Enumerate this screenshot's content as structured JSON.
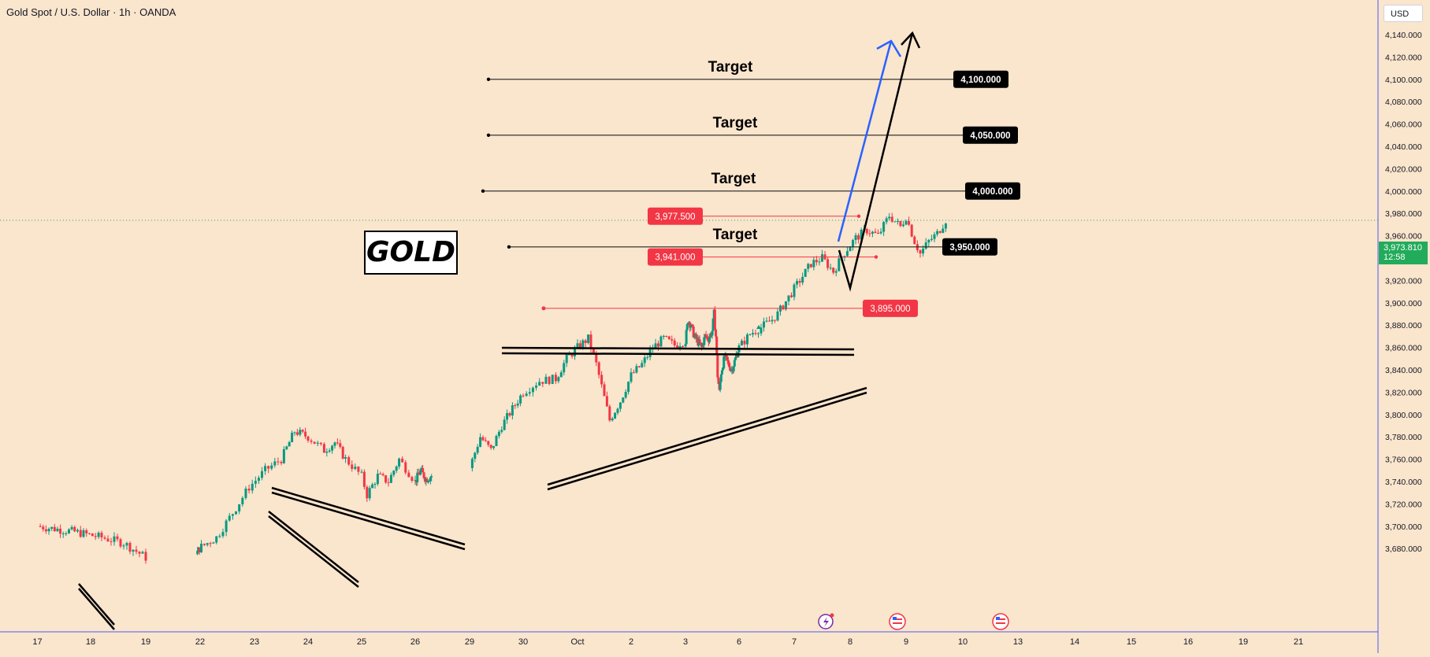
{
  "header": {
    "title": "Gold Spot / U.S. Dollar · 1h · OANDA",
    "currency": "USD"
  },
  "chart_data": {
    "type": "candlestick",
    "instrument": "Gold Spot / U.S. Dollar",
    "timeframe": "1h",
    "source": "OANDA",
    "currency": "USD",
    "ylim": [
      3672,
      4152
    ],
    "y_ticks": [
      "4,140.000",
      "4,120.000",
      "4,100.000",
      "4,080.000",
      "4,060.000",
      "4,040.000",
      "4,020.000",
      "4,000.000",
      "3,980.000",
      "3,960.000",
      "3,940.000",
      "3,920.000",
      "3,900.000",
      "3,880.000",
      "3,860.000",
      "3,840.000",
      "3,820.000",
      "3,800.000",
      "3,780.000",
      "3,760.000",
      "3,740.000",
      "3,720.000",
      "3,700.000",
      "3,680.000"
    ],
    "x_ticks": [
      "17",
      "18",
      "19",
      "22",
      "23",
      "24",
      "25",
      "26",
      "29",
      "30",
      "Oct",
      "2",
      "3",
      "6",
      "7",
      "8",
      "9",
      "10",
      "13",
      "14",
      "15",
      "16",
      "19",
      "21"
    ],
    "current_price": {
      "label": "3,973.810",
      "countdown": "12:58",
      "value": 3973.81
    },
    "price_path": [
      [
        17.0,
        3700
      ],
      [
        17.7,
        3695
      ],
      [
        18.2,
        3690
      ],
      [
        18.6,
        3685
      ],
      [
        19.0,
        3672
      ],
      [
        21.8,
        3675
      ],
      [
        22.3,
        3690
      ],
      [
        22.6,
        3712
      ],
      [
        22.9,
        3735
      ],
      [
        23.2,
        3750
      ],
      [
        23.5,
        3760
      ],
      [
        23.75,
        3785
      ],
      [
        24.0,
        3780
      ],
      [
        24.3,
        3768
      ],
      [
        24.5,
        3775
      ],
      [
        24.7,
        3760
      ],
      [
        25.0,
        3745
      ],
      [
        25.1,
        3728
      ],
      [
        25.3,
        3745
      ],
      [
        25.5,
        3740
      ],
      [
        25.7,
        3760
      ],
      [
        26.0,
        3740
      ],
      [
        26.3,
        3750
      ],
      [
        26.6,
        3742
      ],
      [
        26.9,
        3745
      ],
      [
        29.0,
        3752
      ],
      [
        29.2,
        3780
      ],
      [
        29.4,
        3768
      ],
      [
        29.6,
        3790
      ],
      [
        29.8,
        3805
      ],
      [
        30.0,
        3820
      ],
      [
        30.3,
        3830
      ],
      [
        30.6,
        3832
      ],
      [
        30.8,
        3850
      ],
      [
        31.0,
        3860
      ],
      [
        31.2,
        3868
      ],
      [
        31.35,
        3845
      ],
      [
        31.5,
        3815
      ],
      [
        31.6,
        3795
      ],
      [
        31.8,
        3812
      ],
      [
        32.0,
        3835
      ],
      [
        32.2,
        3845
      ],
      [
        32.4,
        3860
      ],
      [
        32.6,
        3868
      ],
      [
        32.8,
        3862
      ],
      [
        33.0,
        3866
      ],
      [
        33.15,
        3885
      ],
      [
        33.3,
        3880
      ],
      [
        33.5,
        3870
      ],
      [
        33.7,
        3865
      ],
      [
        33.9,
        3860
      ],
      [
        34.1,
        3870
      ],
      [
        34.3,
        3868
      ],
      [
        34.5,
        3875
      ],
      [
        34.6,
        3890
      ],
      [
        34.7,
        3870
      ],
      [
        34.8,
        3835
      ],
      [
        34.9,
        3820
      ],
      [
        35.0,
        3838
      ],
      [
        35.2,
        3852
      ],
      [
        35.4,
        3845
      ],
      [
        35.6,
        3840
      ],
      [
        35.8,
        3850
      ],
      [
        36.0,
        3860
      ],
      [
        36.2,
        3872
      ],
      [
        36.4,
        3878
      ],
      [
        36.6,
        3885
      ],
      [
        36.7,
        3890
      ],
      [
        36.9,
        3905
      ],
      [
        37.1,
        3920
      ],
      [
        37.3,
        3935
      ],
      [
        37.5,
        3940
      ],
      [
        37.7,
        3928
      ],
      [
        37.9,
        3945
      ],
      [
        38.1,
        3958
      ],
      [
        38.3,
        3965
      ],
      [
        38.5,
        3960
      ],
      [
        38.7,
        3978
      ],
      [
        38.9,
        3968
      ],
      [
        39.0,
        3977
      ],
      [
        39.15,
        3955
      ],
      [
        39.25,
        3944
      ],
      [
        39.4,
        3955
      ],
      [
        39.55,
        3962
      ],
      [
        39.7,
        3974
      ]
    ],
    "levels": [
      {
        "label": "Target",
        "price_label": "4,100.000",
        "value": 4100
      },
      {
        "label": "Target",
        "price_label": "4,050.000",
        "value": 4050
      },
      {
        "label": "Target",
        "price_label": "4,000.000",
        "value": 4000
      },
      {
        "label": "Target",
        "price_label": "3,950.000",
        "value": 3950
      }
    ],
    "red_levels": [
      {
        "price_label": "3,977.500",
        "value": 3977.5
      },
      {
        "price_label": "3,941.000",
        "value": 3941.0
      },
      {
        "price_label": "3,895.000",
        "value": 3895.0
      }
    ],
    "annotation_text": "GOLD",
    "colors": {
      "background": "#FAE5CD",
      "up": "#089981",
      "down": "#F23645",
      "target_box": "#000000",
      "red_box": "#F23645",
      "blue_arrow": "#2962FF",
      "black_arrow": "#000000",
      "current_price": "#22AB5B"
    }
  }
}
